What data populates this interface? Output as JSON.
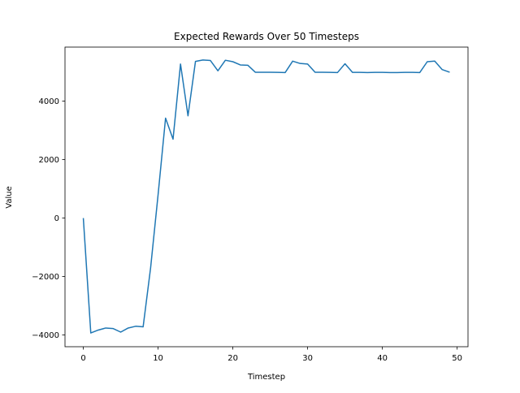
{
  "chart_data": {
    "type": "line",
    "title": "Expected Rewards Over 50 Timesteps",
    "xlabel": "Timestep",
    "ylabel": "Value",
    "xlim": [
      -2.45,
      51.45
    ],
    "ylim": [
      -4400,
      5850
    ],
    "x_ticks": [
      0,
      10,
      20,
      30,
      40,
      50
    ],
    "y_ticks": [
      -4000,
      -2000,
      0,
      2000,
      4000
    ],
    "y_tick_labels": [
      "−4000",
      "−2000",
      "0",
      "2000",
      "4000"
    ],
    "grid": false,
    "legend": "none",
    "series": [
      {
        "color": "#1f77b4",
        "x": [
          0,
          1,
          2,
          3,
          4,
          5,
          6,
          7,
          8,
          9,
          10,
          11,
          12,
          13,
          14,
          15,
          16,
          17,
          18,
          19,
          20,
          21,
          22,
          23,
          24,
          25,
          26,
          27,
          28,
          29,
          30,
          31,
          32,
          33,
          34,
          35,
          36,
          37,
          38,
          39,
          40,
          41,
          42,
          43,
          44,
          45,
          46,
          47,
          48,
          49
        ],
        "values": [
          0,
          -3930,
          -3830,
          -3760,
          -3780,
          -3900,
          -3760,
          -3700,
          -3720,
          -1700,
          800,
          3420,
          2700,
          5270,
          3500,
          5360,
          5410,
          5390,
          5040,
          5400,
          5350,
          5240,
          5230,
          4990,
          4990,
          4990,
          4985,
          4980,
          5370,
          5290,
          5270,
          4990,
          4990,
          4985,
          4980,
          5280,
          4985,
          4985,
          4980,
          4985,
          4985,
          4980,
          4980,
          4985,
          4985,
          4980,
          5350,
          5370,
          5080,
          4990
        ]
      }
    ]
  }
}
